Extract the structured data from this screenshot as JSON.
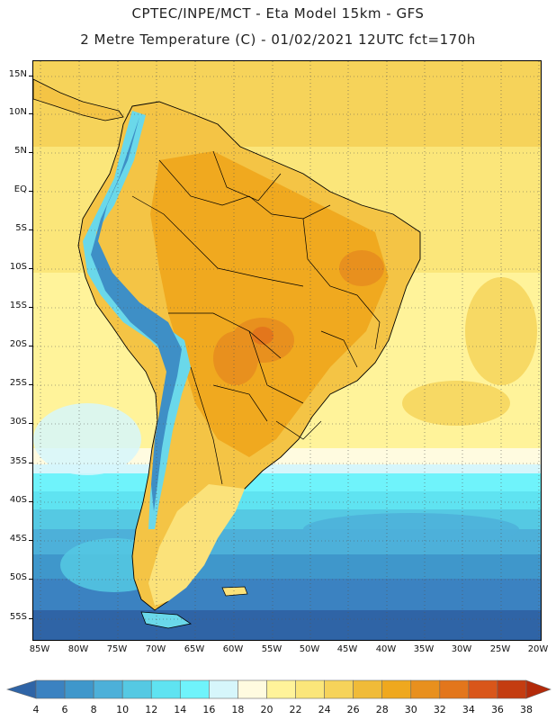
{
  "header": {
    "line1": "CPTEC/INPE/MCT -  Eta Model 15km - GFS",
    "line2": "2 Metre Temperature (C) - 01/02/2021 12UTC fct=170h"
  },
  "map": {
    "lat_labels": [
      "15N",
      "10N",
      "5N",
      "EQ",
      "5S",
      "10S",
      "15S",
      "20S",
      "25S",
      "30S",
      "35S",
      "40S",
      "45S",
      "50S",
      "55S"
    ],
    "lon_labels": [
      "85W",
      "80W",
      "75W",
      "70W",
      "65W",
      "60W",
      "55W",
      "50W",
      "45W",
      "40W",
      "35W",
      "30W",
      "25W",
      "20W"
    ],
    "ocean_bands": [
      {
        "range_c": "26-28",
        "color": "#f6d35a"
      },
      {
        "range_c": "24-26",
        "color": "#fbe67a"
      },
      {
        "range_c": "22-24",
        "color": "#fff39a"
      },
      {
        "range_c": "20-22",
        "color": "#fffbe0"
      },
      {
        "range_c": "18-20",
        "color": "#d6f6fb"
      },
      {
        "range_c": "16-18",
        "color": "#6ff3fb"
      },
      {
        "range_c": "14-16",
        "color": "#5fe3f1"
      },
      {
        "range_c": "12-14",
        "color": "#55c9e3"
      },
      {
        "range_c": "10-12",
        "color": "#4db0d9"
      },
      {
        "range_c": "8-10",
        "color": "#3f97cb"
      },
      {
        "range_c": "6-8",
        "color": "#3b82c1"
      },
      {
        "range_c": "4-6",
        "color": "#2f64a6"
      }
    ],
    "land_colors": {
      "warm": "#efa81e",
      "hot": "#e8901e",
      "very_hot": "#e3761c",
      "mild": "#f4c445",
      "cool": "#fbe27a",
      "andes_cold": "#3e8fc6",
      "andes_cool": "#6ad8ea"
    }
  },
  "colorbar": {
    "labels": [
      "4",
      "6",
      "8",
      "10",
      "12",
      "14",
      "16",
      "18",
      "20",
      "22",
      "24",
      "26",
      "28",
      "30",
      "32",
      "34",
      "36",
      "38"
    ],
    "colors": [
      "#2f64a6",
      "#3b82c1",
      "#3f97cb",
      "#4db0d9",
      "#55c9e3",
      "#5fe3f1",
      "#6ff3fb",
      "#d6f6fb",
      "#fffbe0",
      "#fff39a",
      "#fbe67a",
      "#f6d35a",
      "#f0bb38",
      "#efa81e",
      "#e8901e",
      "#e3761c",
      "#d9561a",
      "#c43c10",
      "#b32a0a"
    ]
  }
}
